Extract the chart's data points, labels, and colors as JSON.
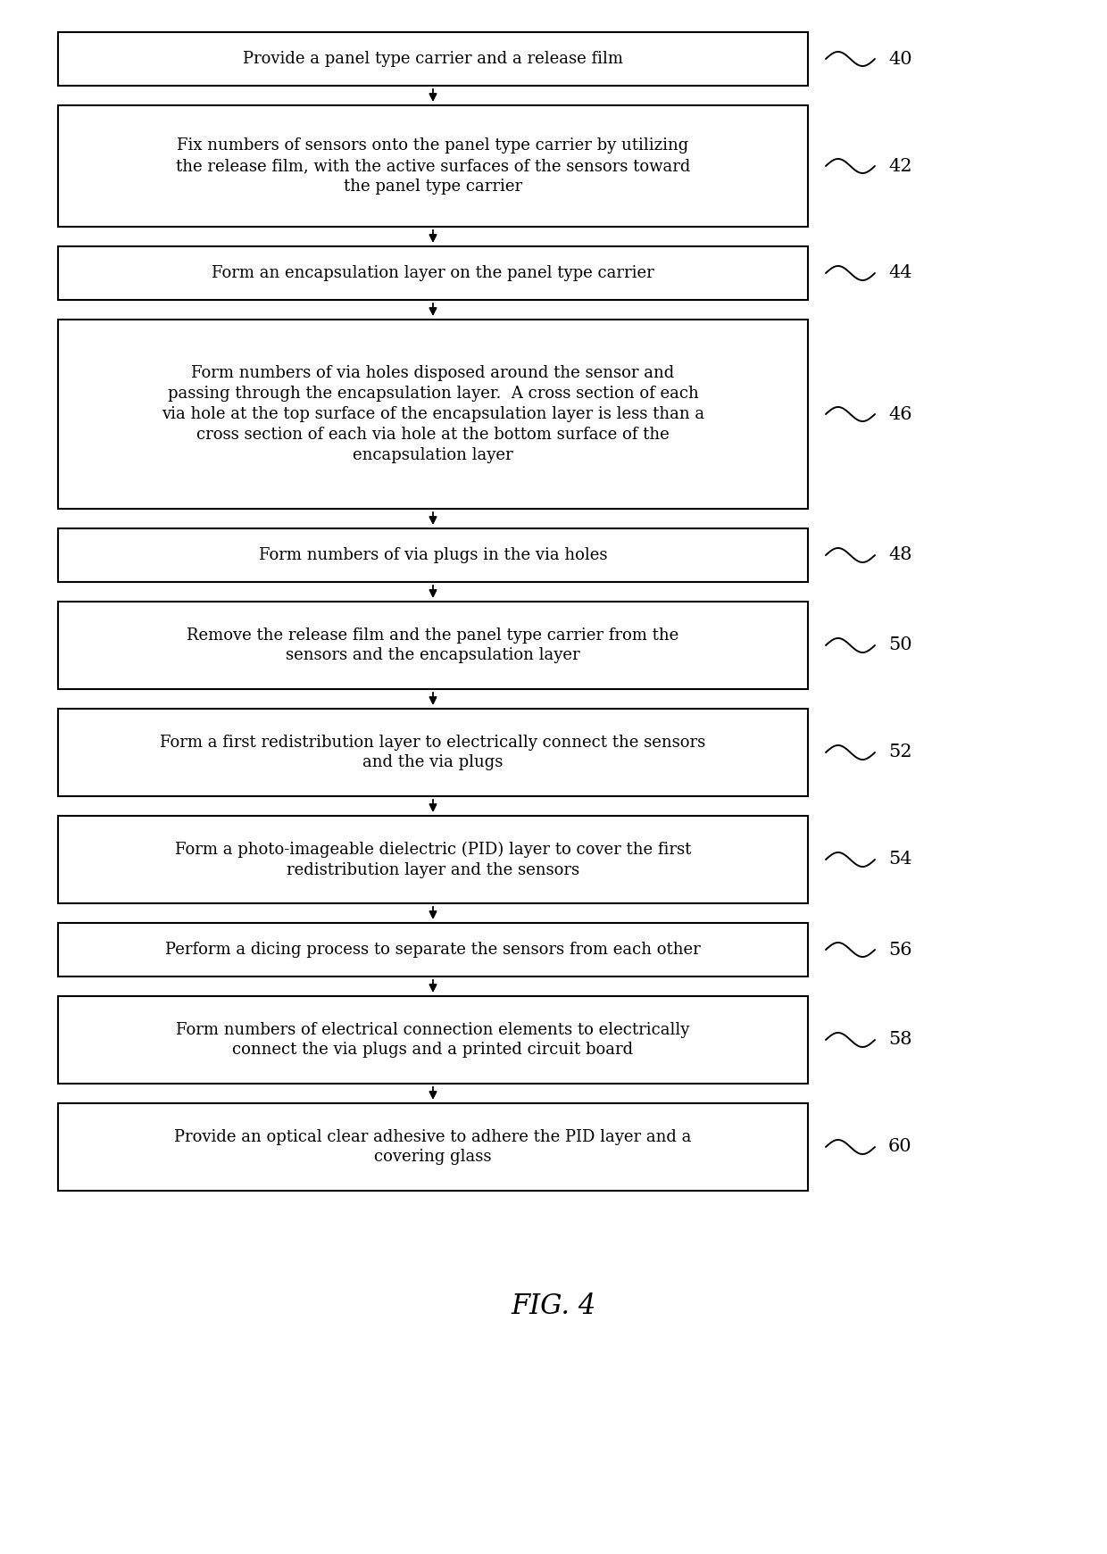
{
  "figure_title": "FIG. 4",
  "background_color": "#ffffff",
  "box_color": "#ffffff",
  "box_edge_color": "#000000",
  "box_edge_width": 1.5,
  "arrow_color": "#000000",
  "text_color": "#000000",
  "label_color": "#000000",
  "font_size": 13.0,
  "label_font_size": 15,
  "title_font_size": 22,
  "steps": [
    {
      "id": "40",
      "lines": [
        "Provide a panel type carrier and a release film"
      ],
      "nlines": 1
    },
    {
      "id": "42",
      "lines": [
        "Fix numbers of sensors onto the panel type carrier by utilizing",
        "the release film, with the active surfaces of the sensors toward",
        "the panel type carrier"
      ],
      "nlines": 3
    },
    {
      "id": "44",
      "lines": [
        "Form an encapsulation layer on the panel type carrier"
      ],
      "nlines": 1
    },
    {
      "id": "46",
      "lines": [
        "Form numbers of via holes disposed around the sensor and",
        "passing through the encapsulation layer.  A cross section of each",
        "via hole at the top surface of the encapsulation layer is less than a",
        "cross section of each via hole at the bottom surface of the",
        "encapsulation layer"
      ],
      "nlines": 5
    },
    {
      "id": "48",
      "lines": [
        "Form numbers of via plugs in the via holes"
      ],
      "nlines": 1
    },
    {
      "id": "50",
      "lines": [
        "Remove the release film and the panel type carrier from the",
        "sensors and the encapsulation layer"
      ],
      "nlines": 2
    },
    {
      "id": "52",
      "lines": [
        "Form a first redistribution layer to electrically connect the sensors",
        "and the via plugs"
      ],
      "nlines": 2
    },
    {
      "id": "54",
      "lines": [
        "Form a photo-imageable dielectric (PID) layer to cover the first",
        "redistribution layer and the sensors"
      ],
      "nlines": 2
    },
    {
      "id": "56",
      "lines": [
        "Perform a dicing process to separate the sensors from each other"
      ],
      "nlines": 1
    },
    {
      "id": "58",
      "lines": [
        "Form numbers of electrical connection elements to electrically",
        "connect the via plugs and a printed circuit board"
      ],
      "nlines": 2
    },
    {
      "id": "60",
      "lines": [
        "Provide an optical clear adhesive to adhere the PID layer and a",
        "covering glass"
      ],
      "nlines": 2
    }
  ]
}
